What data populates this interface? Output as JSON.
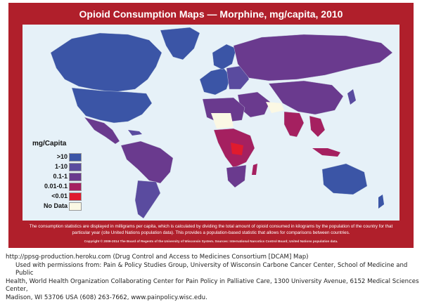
{
  "map": {
    "title": "Opioid Consumption Maps — Morphine, mg/capita, 2010",
    "legend": {
      "title": "mg/Capita",
      "items": [
        {
          "label": ">10",
          "color": "#3b55a6"
        },
        {
          "label": "1-10",
          "color": "#5a4b9f"
        },
        {
          "label": "0.1-1",
          "color": "#6a3a8e"
        },
        {
          "label": "0.01-0.1",
          "color": "#a52060"
        },
        {
          "label": "<0.01",
          "color": "#e01b2e"
        },
        {
          "label": "No Data",
          "color": "#fbf8e4"
        }
      ]
    },
    "footnote": "The consumption statistics are displayed in milligrams per capita, which is calculated by dividing the total amount of opioid consumed in kilograms by the population of the country for that particular year (cite United Nations population data). This provides a population-based statistic that allows for comparisons between countries.",
    "copyright": "Copyright © 2009-2014 The Board of Regents of the University of Wisconsin System. Sources: International Narcotics Control Board; United Nations population data.",
    "ocean_color": "#e6f1f8",
    "frame_color": "#b01f2b"
  },
  "source": {
    "url_line": "http://ppsg-production.heroku.com (Drug Control and Access to Medicines Consortium [DCAM] Map)",
    "permission_line": "Used with permissions from:  Pain & Policy Studies Group, University of Wisconsin Carbone Cancer Center, School of Medicine and Public",
    "permission_line2": "Health, World Health Organization Collaborating Center for Pain Policy in Palliative Care, 1300 University Avenue, 6152 Medical Sciences Center,",
    "permission_line3": "Madison, WI  53706 USA (608) 263-7662, www.painpolicy.wisc.edu."
  }
}
